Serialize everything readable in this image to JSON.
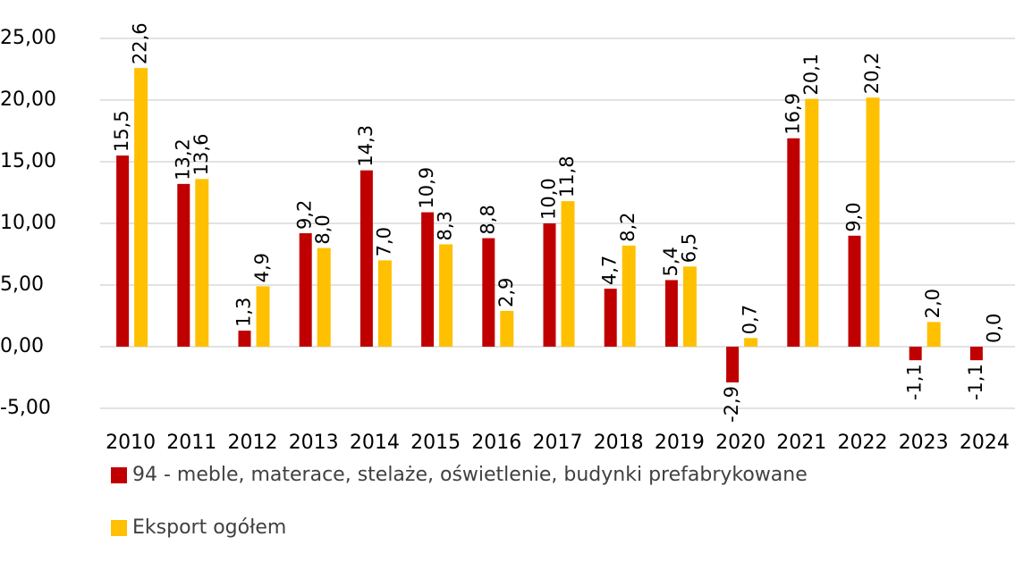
{
  "chart_data": {
    "type": "bar",
    "categories": [
      "2010",
      "2011",
      "2012",
      "2013",
      "2014",
      "2015",
      "2016",
      "2017",
      "2018",
      "2019",
      "2020",
      "2021",
      "2022",
      "2023",
      "2024"
    ],
    "series": [
      {
        "name": "94 -  meble, materace, stelaże, oświetlenie, budynki prefabrykowane",
        "color": "#c00000",
        "label_color": "#c00000",
        "values": [
          15.5,
          13.2,
          1.3,
          9.2,
          14.3,
          10.9,
          8.8,
          10.0,
          4.7,
          5.4,
          -2.9,
          16.9,
          9.0,
          -1.1,
          -1.1
        ],
        "value_labels": [
          "15,5",
          "13,2",
          "1,3",
          "9,2",
          "14,3",
          "10,9",
          "8,8",
          "10,0",
          "4,7",
          "5,4",
          "-2,9",
          "16,9",
          "9,0",
          "-1,1",
          "-1,1"
        ]
      },
      {
        "name": "Eksport ogółem",
        "color": "#ffc000",
        "label_color": "#ed8b2e",
        "values": [
          22.6,
          13.6,
          4.9,
          8.0,
          7.0,
          8.3,
          2.9,
          11.8,
          8.2,
          6.5,
          0.7,
          20.1,
          20.2,
          2.0,
          0.0
        ],
        "value_labels": [
          "22,6",
          "13,6",
          "4,9",
          "8,0",
          "7,0",
          "8,3",
          "2,9",
          "11,8",
          "8,2",
          "6,5",
          "0,7",
          "20,1",
          "20,2",
          "2,0",
          "0,0"
        ]
      }
    ],
    "ylim": [
      -5,
      25
    ],
    "yticks": [
      {
        "value": -5,
        "label": "-5,00"
      },
      {
        "value": 0,
        "label": "0,00"
      },
      {
        "value": 5,
        "label": "5,00"
      },
      {
        "value": 10,
        "label": "10,00"
      },
      {
        "value": 15,
        "label": "15,00"
      },
      {
        "value": 20,
        "label": "20,00"
      },
      {
        "value": 25,
        "label": "25,00"
      }
    ],
    "grid": true,
    "legend": "bottom"
  }
}
